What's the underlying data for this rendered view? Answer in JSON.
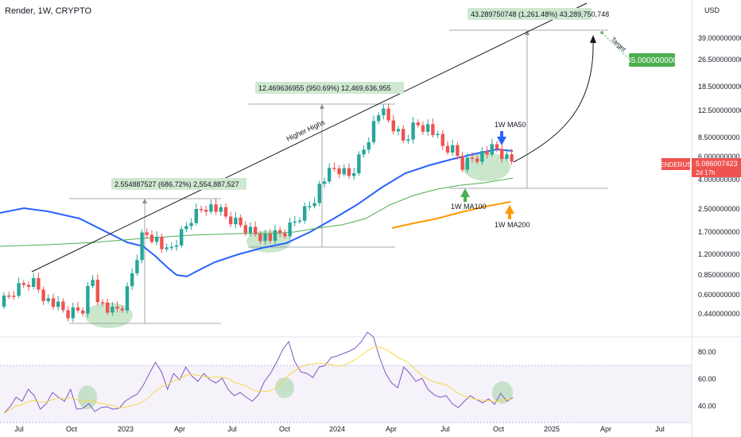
{
  "header": {
    "title": "Render, 1W, CRYPTO",
    "currency": "USD"
  },
  "colors": {
    "up": "#26a69a",
    "down": "#ef5350",
    "ma50": "#2962ff",
    "ma100": "#4caf50",
    "ma200": "#ff9800",
    "rsi": "#7e57c2",
    "rsi_ma": "#f7d74a",
    "highlight": "#9fd3a2"
  },
  "price_axis": {
    "ticks": [
      "39.000000000",
      "26.500000000",
      "18.500000000",
      "12.500000000",
      "8.500000000",
      "6.000000000",
      "4.000000000",
      "2.500000000",
      "1.700000000",
      "1.200000000",
      "0.850000000",
      "0.600000000",
      "0.440000000"
    ],
    "current_label": "RENDERUSD",
    "current_value": "5.086007423",
    "countdown": "2d 17h"
  },
  "rsi_axis": {
    "ticks": [
      "80.00",
      "60.00",
      "40.00"
    ]
  },
  "time_axis": {
    "labels": [
      "Jul",
      "Oct",
      "2023",
      "Apr",
      "Jul",
      "Oct",
      "2024",
      "Apr",
      "Jul",
      "Oct",
      "2025",
      "Apr",
      "Jul"
    ]
  },
  "annotations": {
    "m1": "2.554887527 (686.72%) 2,554,887,527",
    "m2": "12.469636955 (950.69%) 12,469,636,955",
    "m3": "43.289750748 (1,261.48%) 43,289,750,748",
    "target_box": "45.000000000",
    "target_text": "Target",
    "trendline_text": "Higher Highs",
    "ma50_label": "1W MA50",
    "ma100_label": "1W MA100",
    "ma200_label": "1W MA200"
  },
  "chart_data": {
    "type": "candlestick",
    "title": "Render, 1W, CRYPTO",
    "scale": "log",
    "series": [
      {
        "name": "RENDERUSD",
        "last": 5.086007423
      },
      {
        "name": "1W MA50"
      },
      {
        "name": "1W MA100"
      },
      {
        "name": "1W MA200"
      },
      {
        "name": "RSI"
      }
    ],
    "measures": [
      {
        "value": 2.554887527,
        "percent": 686.72
      },
      {
        "value": 12.469636955,
        "percent": 950.69
      },
      {
        "value": 43.289750748,
        "percent": 1261.48
      }
    ],
    "target": 45.0,
    "rsi_range": [
      30,
      90
    ]
  }
}
